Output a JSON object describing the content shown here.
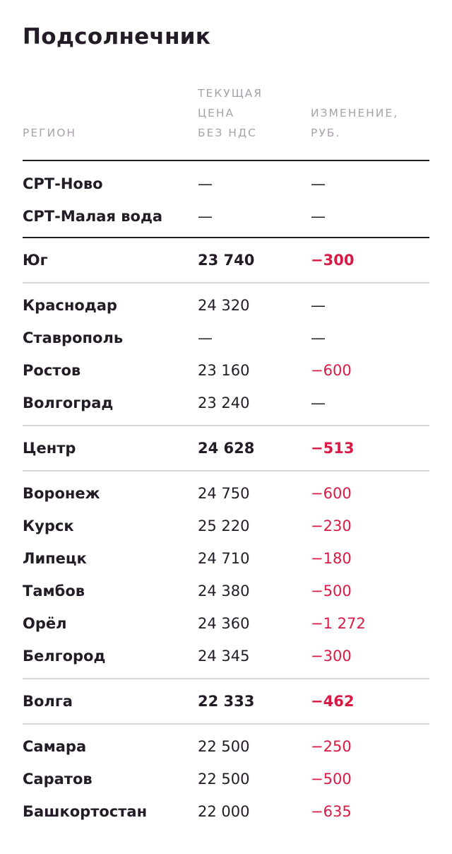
{
  "title": "Подсолнечник",
  "columns": {
    "region": "РЕГИОН",
    "price": "ТЕКУЩАЯ\nЦЕНА\nБЕЗ НДС",
    "change": "ИЗМЕНЕНИЕ,\nРУБ."
  },
  "groups": [
    {
      "type": "list",
      "divider": "dark",
      "rows": [
        {
          "region": "СРТ-Ново",
          "price": "—",
          "change": "—",
          "negative": false
        },
        {
          "region": "СРТ-Малая вода",
          "price": "—",
          "change": "—",
          "negative": false
        }
      ]
    },
    {
      "type": "summary",
      "divider": "light",
      "rows": [
        {
          "region": "Юг",
          "price": "23 740",
          "change": "−300",
          "negative": true
        }
      ]
    },
    {
      "type": "list",
      "divider": "light",
      "rows": [
        {
          "region": "Краснодар",
          "price": "24 320",
          "change": "—",
          "negative": false
        },
        {
          "region": "Ставрополь",
          "price": "—",
          "change": "—",
          "negative": false
        },
        {
          "region": "Ростов",
          "price": "23 160",
          "change": "−600",
          "negative": true
        },
        {
          "region": "Волгоград",
          "price": "23 240",
          "change": "—",
          "negative": false
        }
      ]
    },
    {
      "type": "summary",
      "divider": "light",
      "rows": [
        {
          "region": "Центр",
          "price": "24 628",
          "change": "−513",
          "negative": true
        }
      ]
    },
    {
      "type": "list",
      "divider": "light",
      "rows": [
        {
          "region": "Воронеж",
          "price": "24 750",
          "change": "−600",
          "negative": true
        },
        {
          "region": "Курск",
          "price": "25 220",
          "change": "−230",
          "negative": true
        },
        {
          "region": "Липецк",
          "price": "24 710",
          "change": "−180",
          "negative": true
        },
        {
          "region": "Тамбов",
          "price": "24 380",
          "change": "−500",
          "negative": true
        },
        {
          "region": "Орёл",
          "price": "24 360",
          "change": "−1 272",
          "negative": true
        },
        {
          "region": "Белгород",
          "price": "24 345",
          "change": "−300",
          "negative": true
        }
      ]
    },
    {
      "type": "summary",
      "divider": "light",
      "rows": [
        {
          "region": "Волга",
          "price": "22 333",
          "change": "−462",
          "negative": true
        }
      ]
    },
    {
      "type": "list",
      "divider": "none",
      "rows": [
        {
          "region": "Самара",
          "price": "22 500",
          "change": "−250",
          "negative": true
        },
        {
          "region": "Саратов",
          "price": "22 500",
          "change": "−500",
          "negative": true
        },
        {
          "region": "Башкортостан",
          "price": "22 000",
          "change": "−635",
          "negative": true
        }
      ]
    }
  ],
  "colors": {
    "text": "#231c26",
    "negative": "#d81a44",
    "header": "#a7a2aa",
    "divider_light": "#d6d3d7"
  }
}
